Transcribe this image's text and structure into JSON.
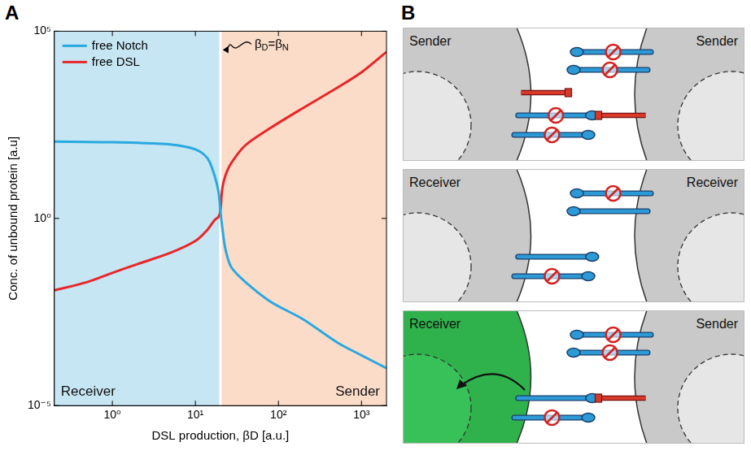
{
  "panel_labels": [
    "A",
    "B"
  ],
  "chart_data": {
    "type": "line",
    "log": true,
    "grid": false,
    "legend": "upper left",
    "x_label": "DSL production, βD [a.u.]",
    "y_label": "Conc. of unbound protein [a.u]",
    "x": [
      0.2,
      0.5,
      1,
      2,
      5,
      10,
      14,
      17,
      19,
      20,
      21,
      23,
      27,
      40,
      80,
      200,
      500,
      1000,
      2000
    ],
    "series": [
      {
        "name": "free Notch",
        "color": "#29a9e0",
        "values": [
          112,
          110,
          108,
          104,
          95,
          70,
          40,
          14,
          5,
          1.6,
          0.6,
          0.15,
          0.05,
          0.02,
          0.006,
          0.002,
          0.0005,
          0.00022,
          0.0001
        ]
      },
      {
        "name": "free DSL",
        "color": "#e8262a",
        "values": [
          0.012,
          0.02,
          0.035,
          0.06,
          0.12,
          0.25,
          0.5,
          0.9,
          1.1,
          1.6,
          6,
          14,
          30,
          90,
          260,
          900,
          3000,
          8000,
          28000
        ]
      }
    ],
    "xlim": [
      0.2,
      2000
    ],
    "xticks": [
      {
        "value": 1,
        "label": "10⁰"
      },
      {
        "value": 10,
        "label": "10¹"
      },
      {
        "value": 100,
        "label": "10²"
      },
      {
        "value": 1000,
        "label": "10³"
      }
    ],
    "ylim": [
      1e-05,
      100000
    ],
    "yticks": [
      {
        "value": 1e-05,
        "label": "10⁻⁵"
      },
      {
        "value": 1,
        "label": "10⁰"
      },
      {
        "value": 100000,
        "label": "10⁵"
      }
    ],
    "regions": [
      {
        "label": "Receiver",
        "from": 0.2,
        "to": 20,
        "color": "#c6e6f3"
      },
      {
        "label": "Sender",
        "from": 20,
        "to": 2000,
        "color": "#fbdcc9"
      }
    ],
    "annotations": [
      {
        "text": "βD=βN",
        "x": 20
      }
    ]
  },
  "diagram": {
    "rows": [
      {
        "left_cell": "Sender",
        "right_cell": "Sender"
      },
      {
        "left_cell": "Receiver",
        "right_cell": "Receiver"
      },
      {
        "left_cell": "Receiver",
        "right_cell": "Sender"
      }
    ]
  }
}
